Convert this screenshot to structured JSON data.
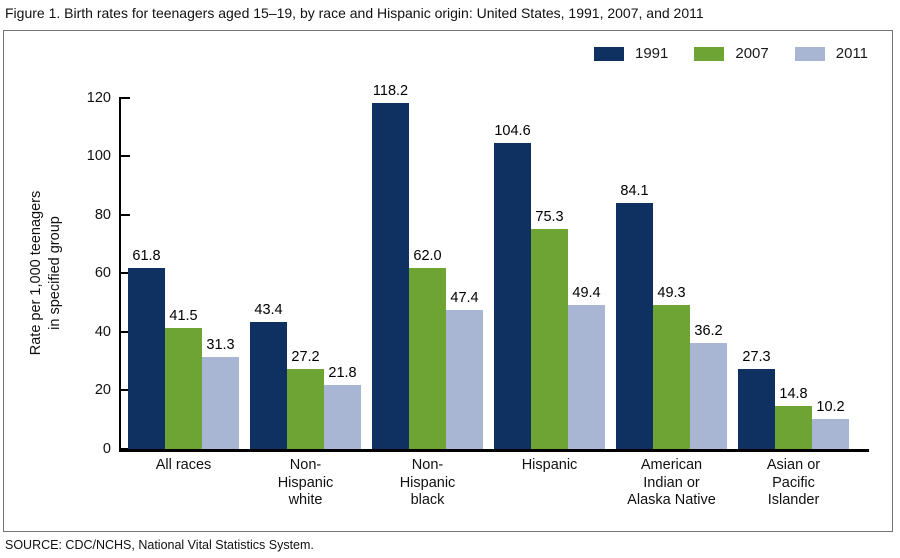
{
  "title": "Figure 1. Birth rates for teenagers aged 15–19, by race and Hispanic origin: United States, 1991, 2007, and 2011",
  "source": "SOURCE: CDC/NCHS, National Vital Statistics System.",
  "chart_data": {
    "type": "bar",
    "title": "Birth rates for teenagers aged 15–19, by race and Hispanic origin: United States, 1991, 2007, and 2011",
    "categories": [
      "All races",
      "Non-Hispanic white",
      "Non-Hispanic black",
      "Hispanic",
      "American Indian or Alaska Native",
      "Asian or Pacific Islander"
    ],
    "category_label_lines": [
      [
        "All races"
      ],
      [
        "Non-",
        "Hispanic",
        "white"
      ],
      [
        "Non-",
        "Hispanic",
        "black"
      ],
      [
        "Hispanic"
      ],
      [
        "American",
        "Indian or",
        "Alaska Native"
      ],
      [
        "Asian or",
        "Pacific",
        "Islander"
      ]
    ],
    "series": [
      {
        "name": "1991",
        "color": "#0e3162",
        "values": [
          61.8,
          43.4,
          118.2,
          104.6,
          84.1,
          27.3
        ]
      },
      {
        "name": "2007",
        "color": "#6ea434",
        "values": [
          41.5,
          27.2,
          62.0,
          75.3,
          49.3,
          14.8
        ]
      },
      {
        "name": "2011",
        "color": "#a9b6d3",
        "values": [
          31.3,
          21.8,
          47.4,
          49.4,
          36.2,
          10.2
        ]
      }
    ],
    "ylabel_lines": [
      "Rate per 1,000 teenagers",
      "in specified group"
    ],
    "yticks": [
      0,
      20,
      40,
      60,
      80,
      100,
      120
    ],
    "ylim": [
      0,
      120
    ],
    "value_label_decimals": 1,
    "grid": false,
    "legend_position": "top-right"
  }
}
